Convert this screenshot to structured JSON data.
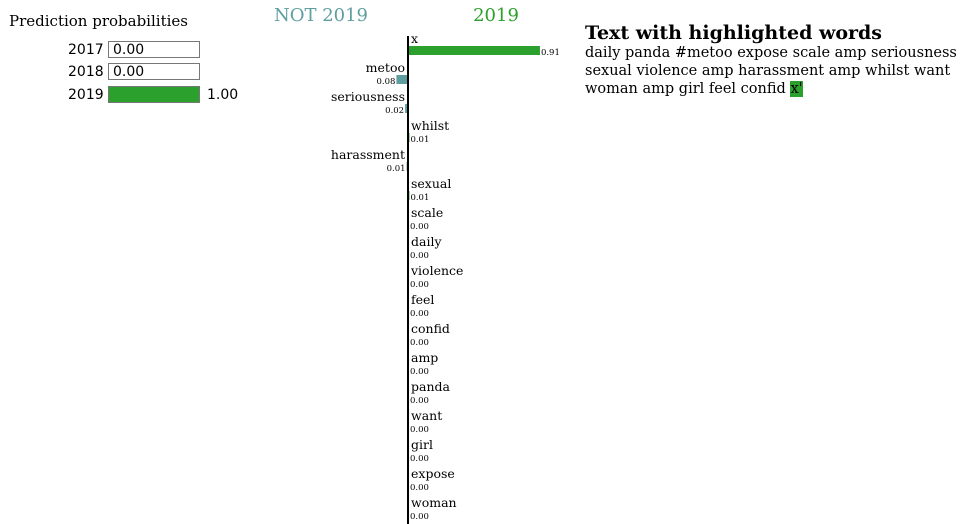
{
  "probabilities": {
    "title": "Prediction probabilities",
    "rows": [
      {
        "label": "2017",
        "value": 0.0,
        "text": "0.00"
      },
      {
        "label": "2018",
        "value": 0.0,
        "text": "0.00"
      },
      {
        "label": "2019",
        "value": 1.0,
        "text": "1.00"
      }
    ],
    "fill_color": "#2ca02c"
  },
  "chart_data": {
    "type": "bar",
    "orientation": "horizontal-diverging",
    "negative_label": "NOT 2019",
    "positive_label": "2019",
    "negative_color": "#5f9ea0",
    "positive_color": "#2ca02c",
    "features": [
      {
        "name": "x",
        "weight": 0.91,
        "label": "0.91"
      },
      {
        "name": "metoo",
        "weight": -0.08,
        "label": "0.08"
      },
      {
        "name": "seriousness",
        "weight": -0.02,
        "label": "0.02"
      },
      {
        "name": "whilst",
        "weight": 0.01,
        "label": "0.01"
      },
      {
        "name": "harassment",
        "weight": -0.01,
        "label": "0.01"
      },
      {
        "name": "sexual",
        "weight": 0.01,
        "label": "0.01"
      },
      {
        "name": "scale",
        "weight": 0.0,
        "label": "0.00"
      },
      {
        "name": "daily",
        "weight": -0.0,
        "label": "0.00"
      },
      {
        "name": "violence",
        "weight": 0.0,
        "label": "0.00"
      },
      {
        "name": "feel",
        "weight": 0.0,
        "label": "0.00"
      },
      {
        "name": "confid",
        "weight": -0.0,
        "label": "0.00"
      },
      {
        "name": "amp",
        "weight": 0.0,
        "label": "0.00"
      },
      {
        "name": "panda",
        "weight": 0.0,
        "label": "0.00"
      },
      {
        "name": "want",
        "weight": -0.0,
        "label": "0.00"
      },
      {
        "name": "girl",
        "weight": -0.0,
        "label": "0.00"
      },
      {
        "name": "expose",
        "weight": 0.0,
        "label": "0.00"
      },
      {
        "name": "woman",
        "weight": 0.0,
        "label": "0.00"
      }
    ]
  },
  "highlight": {
    "title": "Text with highlighted words",
    "words": [
      {
        "text": "daily",
        "hl": false
      },
      {
        "text": "panda",
        "hl": false
      },
      {
        "text": "#metoo",
        "hl": false
      },
      {
        "text": "expose",
        "hl": false
      },
      {
        "text": "scale",
        "hl": false
      },
      {
        "text": "amp",
        "hl": false
      },
      {
        "text": "seriousness",
        "hl": false
      },
      {
        "text": "sexual",
        "hl": false
      },
      {
        "text": "violence",
        "hl": false
      },
      {
        "text": "amp",
        "hl": false
      },
      {
        "text": "harassment",
        "hl": false
      },
      {
        "text": "amp",
        "hl": false
      },
      {
        "text": "whilst",
        "hl": false
      },
      {
        "text": "want",
        "hl": false
      },
      {
        "text": "woman",
        "hl": false
      },
      {
        "text": "amp",
        "hl": false
      },
      {
        "text": "girl",
        "hl": false
      },
      {
        "text": "feel",
        "hl": false
      },
      {
        "text": "confid",
        "hl": false
      },
      {
        "text": "x'",
        "hl": true
      }
    ]
  }
}
